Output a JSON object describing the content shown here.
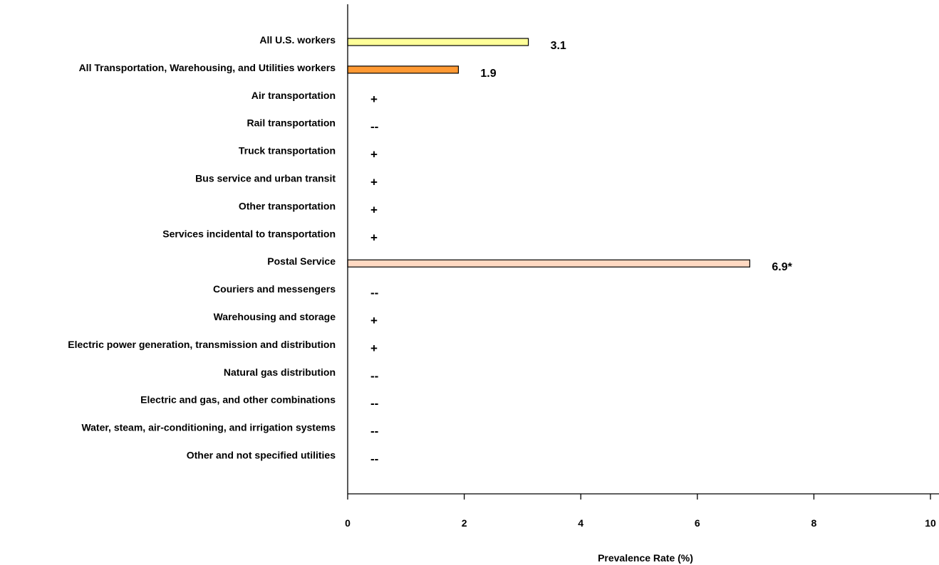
{
  "chart_data": {
    "type": "bar",
    "orientation": "horizontal",
    "title": "",
    "xlabel": "Prevalence Rate (%)",
    "ylabel": "",
    "xlim": [
      0,
      10
    ],
    "x_ticks": [
      0,
      2,
      4,
      6,
      8,
      10
    ],
    "grid": false,
    "categories": [
      "All U.S. workers",
      "All Transportation, Warehousing, and Utilities workers",
      "Air transportation",
      "Rail transportation",
      "Truck transportation",
      "Bus service and urban transit",
      "Other transportation",
      "Services incidental to transportation",
      "Postal Service",
      "Couriers and messengers",
      "Warehousing and storage",
      "Electric power generation, transmission and distribution",
      "Natural gas distribution",
      "Electric and gas, and other combinations",
      "Water, steam, air-conditioning, and irrigation systems",
      "Other and not specified utilities"
    ],
    "values": [
      3.1,
      1.9,
      null,
      null,
      null,
      null,
      null,
      null,
      6.9,
      null,
      null,
      null,
      null,
      null,
      null,
      null
    ],
    "labels": [
      "3.1",
      "1.9",
      "+",
      "--",
      "+",
      "+",
      "+",
      "+",
      "6.9*",
      "--",
      "+",
      "+",
      "--",
      "--",
      "--",
      "--"
    ],
    "bar_colors": [
      "#ffff99",
      "#ff9933",
      "",
      "",
      "",
      "",
      "",
      "",
      "#ffd9c2",
      "",
      "",
      "",
      "",
      "",
      "",
      ""
    ]
  }
}
